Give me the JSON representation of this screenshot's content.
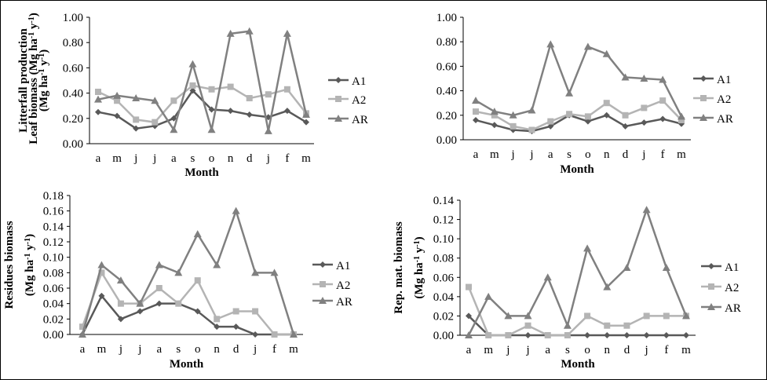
{
  "chart_data": [
    {
      "type": "line",
      "xlabel": "Month",
      "ylabel": "Litterfall production (Mg ha-1 y-1)",
      "ylabel_lines": [
        "Litterfall production",
        "(Mg ha",
        "-1",
        " y",
        "-1",
        ")"
      ],
      "categories": [
        "a",
        "m",
        "j",
        "j",
        "a",
        "s",
        "o",
        "n",
        "d",
        "j",
        "f",
        "m"
      ],
      "ylim": [
        0,
        1.0
      ],
      "yticks": [
        "0.00",
        "0.20",
        "0.40",
        "0.60",
        "0.80",
        "1.00"
      ],
      "grid": false,
      "legend": "right",
      "series": [
        {
          "name": "A1",
          "marker": "diamond",
          "color": "#595959",
          "values": [
            0.25,
            0.22,
            0.12,
            0.14,
            0.2,
            0.42,
            0.27,
            0.26,
            0.23,
            0.21,
            0.26,
            0.17
          ]
        },
        {
          "name": "A2",
          "marker": "square",
          "color": "#b4b4b4",
          "values": [
            0.41,
            0.34,
            0.19,
            0.17,
            0.34,
            0.46,
            0.43,
            0.45,
            0.36,
            0.39,
            0.43,
            0.24
          ]
        },
        {
          "name": "AR",
          "marker": "triangle",
          "color": "#808080",
          "values": [
            0.35,
            0.38,
            0.36,
            0.34,
            0.11,
            0.63,
            0.11,
            0.87,
            0.89,
            0.1,
            0.87,
            0.23
          ]
        }
      ]
    },
    {
      "type": "line",
      "xlabel": "Month",
      "ylabel": "Leaf biomass (Mg ha-1 y-1)",
      "ylabel_lines": [
        "Leaf biomass (Mg ha",
        "-1",
        " y",
        "-1",
        ")"
      ],
      "categories": [
        "a",
        "m",
        "j",
        "j",
        "a",
        "s",
        "o",
        "n",
        "d",
        "j",
        "f",
        "m"
      ],
      "ylim": [
        0,
        1.0
      ],
      "yticks": [
        "0.00",
        "0.20",
        "0.40",
        "0.60",
        "0.80",
        "1.00"
      ],
      "grid": false,
      "legend": "right",
      "series": [
        {
          "name": "A1",
          "marker": "diamond",
          "color": "#595959",
          "values": [
            0.16,
            0.12,
            0.08,
            0.07,
            0.11,
            0.2,
            0.15,
            0.2,
            0.11,
            0.14,
            0.17,
            0.13
          ]
        },
        {
          "name": "A2",
          "marker": "square",
          "color": "#b4b4b4",
          "values": [
            0.23,
            0.2,
            0.11,
            0.08,
            0.15,
            0.21,
            0.19,
            0.3,
            0.2,
            0.26,
            0.32,
            0.16
          ]
        },
        {
          "name": "AR",
          "marker": "triangle",
          "color": "#808080",
          "values": [
            0.32,
            0.23,
            0.2,
            0.24,
            0.78,
            0.38,
            0.76,
            0.7,
            0.51,
            0.5,
            0.49,
            0.19
          ]
        }
      ]
    },
    {
      "type": "line",
      "xlabel": "Month",
      "ylabel": "Residues biomass (Mg ha-1 y-1)",
      "ylabel_lines": [
        "Residues biomass",
        "(Mg ha",
        "-1",
        " y",
        "-1",
        ")"
      ],
      "categories": [
        "a",
        "m",
        "j",
        "j",
        "a",
        "s",
        "o",
        "n",
        "d",
        "j",
        "f",
        "m"
      ],
      "ylim": [
        0,
        0.18
      ],
      "yticks": [
        "0.00",
        "0.02",
        "0.04",
        "0.06",
        "0.08",
        "0.10",
        "0.12",
        "0.14",
        "0.16",
        "0.18"
      ],
      "grid": false,
      "legend": "right",
      "series": [
        {
          "name": "A1",
          "marker": "diamond",
          "color": "#595959",
          "values": [
            0.0,
            0.05,
            0.02,
            0.03,
            0.04,
            0.04,
            0.03,
            0.01,
            0.01,
            0.0,
            0.0,
            0.0
          ]
        },
        {
          "name": "A2",
          "marker": "square",
          "color": "#b4b4b4",
          "values": [
            0.01,
            0.08,
            0.04,
            0.04,
            0.06,
            0.04,
            0.07,
            0.02,
            0.03,
            0.03,
            0.0,
            0.0
          ]
        },
        {
          "name": "AR",
          "marker": "triangle",
          "color": "#808080",
          "values": [
            0.0,
            0.09,
            0.07,
            0.04,
            0.09,
            0.08,
            0.13,
            0.09,
            0.16,
            0.08,
            0.08,
            0.0
          ]
        }
      ]
    },
    {
      "type": "line",
      "xlabel": "Month",
      "ylabel": "Rep. mat. biomass (Mg ha-1 y-1)",
      "ylabel_lines": [
        "Rep. mat. biomass",
        "(Mg ha",
        "-1",
        " y",
        "-1",
        ")"
      ],
      "categories": [
        "a",
        "m",
        "j",
        "j",
        "a",
        "s",
        "o",
        "n",
        "d",
        "j",
        "f",
        "m"
      ],
      "ylim": [
        0,
        0.14
      ],
      "yticks": [
        "0.00",
        "0.02",
        "0.04",
        "0.06",
        "0.08",
        "0.10",
        "0.12",
        "0.14"
      ],
      "grid": false,
      "legend": "right",
      "series": [
        {
          "name": "A1",
          "marker": "diamond",
          "color": "#595959",
          "values": [
            0.02,
            0.0,
            0.0,
            0.0,
            0.0,
            0.0,
            0.0,
            0.0,
            0.0,
            0.0,
            0.0,
            0.0
          ]
        },
        {
          "name": "A2",
          "marker": "square",
          "color": "#b4b4b4",
          "values": [
            0.05,
            0.0,
            0.0,
            0.01,
            0.0,
            0.0,
            0.02,
            0.01,
            0.01,
            0.02,
            0.02,
            0.02
          ]
        },
        {
          "name": "AR",
          "marker": "triangle",
          "color": "#808080",
          "values": [
            0.0,
            0.04,
            0.02,
            0.02,
            0.06,
            0.01,
            0.09,
            0.05,
            0.07,
            0.13,
            0.07,
            0.02
          ]
        }
      ]
    }
  ]
}
